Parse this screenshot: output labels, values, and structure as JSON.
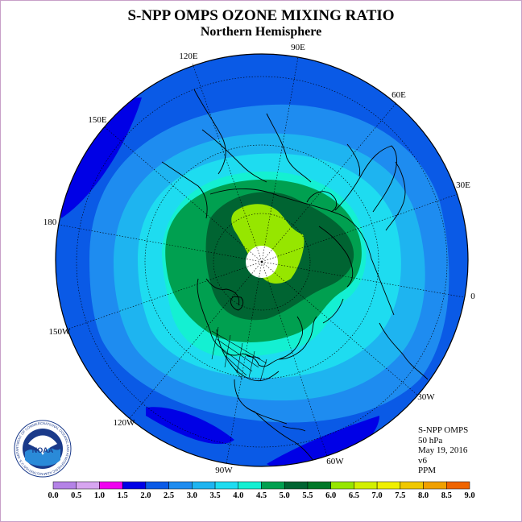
{
  "title": "S-NPP OMPS OZONE MIXING RATIO",
  "subtitle": "Northern Hemisphere",
  "longitude_labels": [
    "90E",
    "60E",
    "30E",
    "0",
    "30W",
    "60W",
    "90W",
    "120W",
    "150W",
    "180",
    "150E",
    "120E"
  ],
  "info": {
    "instrument": "S-NPP OMPS",
    "level": "50 hPa",
    "date": "May 19, 2016",
    "version": "v6",
    "units": "PPM"
  },
  "logo": {
    "text": "NOAA",
    "ring_text": "NATIONAL OCEANIC AND ATMOSPHERIC ADMINISTRATION U.S. DEPARTMENT OF COMMERCE"
  },
  "colorbar": {
    "ticks": [
      "0.0",
      "0.5",
      "1.0",
      "1.5",
      "2.0",
      "2.5",
      "3.0",
      "3.5",
      "4.0",
      "4.5",
      "5.0",
      "5.5",
      "6.0",
      "6.5",
      "7.0",
      "7.5",
      "8.0",
      "8.5",
      "9.0"
    ],
    "colors": [
      "#b482e6",
      "#d7a5f0",
      "#f000f0",
      "#0000e6",
      "#0a5ae6",
      "#1e8cf0",
      "#1eb4f0",
      "#1edcf0",
      "#14f0d2",
      "#00a050",
      "#006432",
      "#007828",
      "#96e600",
      "#d2f000",
      "#f0f000",
      "#f0c800",
      "#f0a000",
      "#f06400",
      "#f00000",
      "#a05028",
      "#a05a3c"
    ]
  },
  "map_colors": {
    "c2_0": "#0000e6",
    "c2_5": "#0a5ae6",
    "c3_0": "#1e8cf0",
    "c3_5": "#1eb4f0",
    "c4_0": "#1edcf0",
    "c4_5": "#14f0d2",
    "c5_0": "#00a050",
    "c5_5": "#006432",
    "c6_0": "#96e600",
    "c6_5": "#d2f000",
    "pole": "#ffffff"
  }
}
